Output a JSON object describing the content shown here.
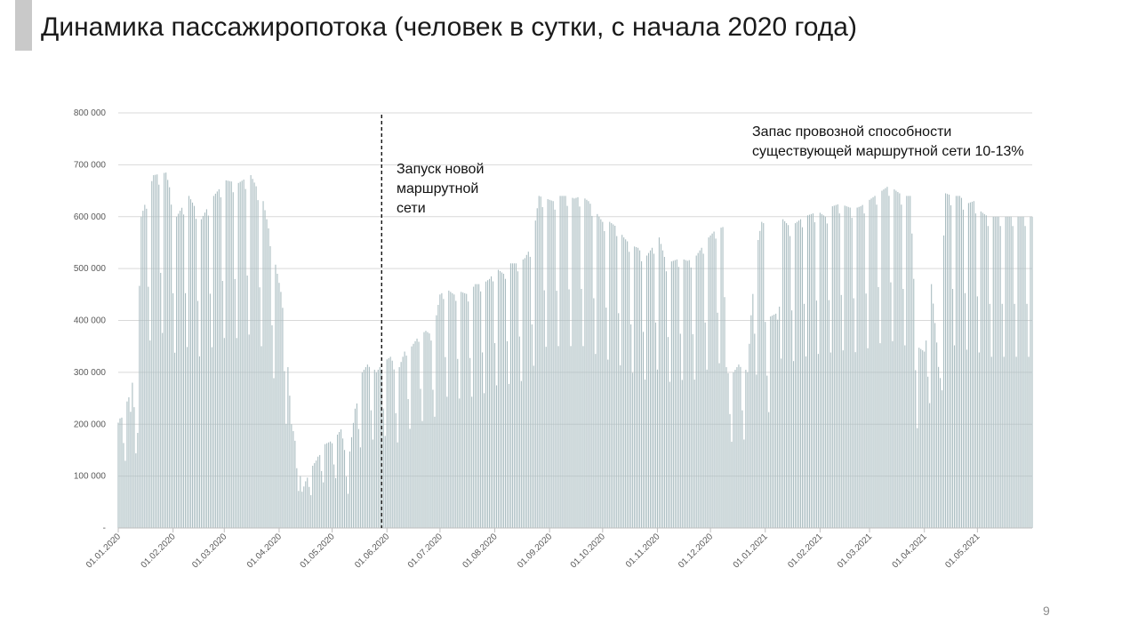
{
  "slide": {
    "title": "Динамика пассажиропотока (человек в сутки, с начала 2020 года)",
    "page_number": "9"
  },
  "chart_data": {
    "type": "bar",
    "title": "Динамика пассажиропотока (человек в сутки, с начала 2020 года)",
    "xlabel": "",
    "ylabel": "",
    "ylim": [
      0,
      800000
    ],
    "grid": true,
    "bar_color": "#a9bcc0",
    "yticks": [
      {
        "value": 0,
        "label": "-"
      },
      {
        "value": 100000,
        "label": "100 000"
      },
      {
        "value": 200000,
        "label": "200 000"
      },
      {
        "value": 300000,
        "label": "300 000"
      },
      {
        "value": 400000,
        "label": "400 000"
      },
      {
        "value": 500000,
        "label": "500 000"
      },
      {
        "value": 600000,
        "label": "600 000"
      },
      {
        "value": 700000,
        "label": "700 000"
      },
      {
        "value": 800000,
        "label": "800 000"
      }
    ],
    "xticks": [
      {
        "day": 0,
        "label": "01.01.2020"
      },
      {
        "day": 31,
        "label": "01.02.2020"
      },
      {
        "day": 60,
        "label": "01.03.2020"
      },
      {
        "day": 91,
        "label": "01.04.2020"
      },
      {
        "day": 121,
        "label": "01.05.2020"
      },
      {
        "day": 152,
        "label": "01.06.2020"
      },
      {
        "day": 182,
        "label": "01.07.2020"
      },
      {
        "day": 213,
        "label": "01.08.2020"
      },
      {
        "day": 244,
        "label": "01.09.2020"
      },
      {
        "day": 274,
        "label": "01.10.2020"
      },
      {
        "day": 305,
        "label": "01.11.2020"
      },
      {
        "day": 335,
        "label": "01.12.2020"
      },
      {
        "day": 366,
        "label": "01.01.2021"
      },
      {
        "day": 397,
        "label": "01.02.2021"
      },
      {
        "day": 425,
        "label": "01.03.2021"
      },
      {
        "day": 456,
        "label": "01.04.2021"
      },
      {
        "day": 486,
        "label": "01.05.2021"
      }
    ],
    "x_start_date": "01.01.2020",
    "num_days": 518,
    "weekly_profile": {
      "note": "daily values approximated from gridlines; weekdays peak, weekends lower",
      "weekday_peaks": [
        [
          0,
          290000
        ],
        [
          6,
          360000
        ],
        [
          10,
          200000
        ],
        [
          13,
          600000
        ],
        [
          20,
          680000
        ],
        [
          27,
          685000
        ],
        [
          33,
          600000
        ],
        [
          40,
          640000
        ],
        [
          47,
          595000
        ],
        [
          54,
          640000
        ],
        [
          61,
          670000
        ],
        [
          68,
          665000
        ],
        [
          75,
          680000
        ],
        [
          82,
          630000
        ],
        [
          86,
          560000
        ],
        [
          90,
          490000
        ],
        [
          94,
          420000
        ],
        [
          98,
          200000
        ],
        [
          101,
          160000
        ],
        [
          104,
          70000
        ],
        [
          108,
          110000
        ],
        [
          112,
          130000
        ],
        [
          116,
          160000
        ],
        [
          122,
          170000
        ],
        [
          126,
          190000
        ],
        [
          130,
          120000
        ],
        [
          134,
          230000
        ],
        [
          138,
          300000
        ],
        [
          142,
          320000
        ],
        [
          146,
          300000
        ],
        [
          150,
          320000
        ],
        [
          154,
          330000
        ],
        [
          158,
          300000
        ],
        [
          162,
          340000
        ],
        [
          166,
          350000
        ],
        [
          170,
          370000
        ],
        [
          174,
          380000
        ],
        [
          178,
          370000
        ],
        [
          182,
          450000
        ],
        [
          186,
          460000
        ],
        [
          190,
          450000
        ],
        [
          194,
          455000
        ],
        [
          198,
          450000
        ],
        [
          202,
          470000
        ],
        [
          206,
          470000
        ],
        [
          210,
          480000
        ],
        [
          214,
          500000
        ],
        [
          218,
          490000
        ],
        [
          222,
          510000
        ],
        [
          226,
          510000
        ],
        [
          230,
          520000
        ],
        [
          234,
          545000
        ],
        [
          238,
          640000
        ],
        [
          242,
          635000
        ],
        [
          246,
          630000
        ],
        [
          250,
          640000
        ],
        [
          254,
          640000
        ],
        [
          258,
          635000
        ],
        [
          262,
          640000
        ],
        [
          266,
          630000
        ],
        [
          270,
          610000
        ],
        [
          274,
          590000
        ],
        [
          278,
          590000
        ],
        [
          282,
          580000
        ],
        [
          286,
          560000
        ],
        [
          290,
          545000
        ],
        [
          294,
          540000
        ],
        [
          298,
          520000
        ],
        [
          302,
          540000
        ],
        [
          306,
          560000
        ],
        [
          310,
          510000
        ],
        [
          314,
          515000
        ],
        [
          318,
          520000
        ],
        [
          322,
          515000
        ],
        [
          326,
          520000
        ],
        [
          330,
          540000
        ],
        [
          334,
          560000
        ],
        [
          338,
          575000
        ],
        [
          342,
          580000
        ],
        [
          344,
          310000
        ],
        [
          348,
          300000
        ],
        [
          352,
          320000
        ],
        [
          356,
          300000
        ],
        [
          360,
          520000
        ],
        [
          364,
          590000
        ],
        [
          368,
          580000
        ],
        [
          372,
          590000
        ],
        [
          376,
          595000
        ],
        [
          380,
          580000
        ],
        [
          384,
          590000
        ],
        [
          388,
          600000
        ],
        [
          392,
          605000
        ],
        [
          396,
          610000
        ],
        [
          400,
          600000
        ],
        [
          404,
          620000
        ],
        [
          408,
          625000
        ],
        [
          412,
          620000
        ],
        [
          416,
          615000
        ],
        [
          420,
          620000
        ],
        [
          424,
          630000
        ],
        [
          428,
          640000
        ],
        [
          432,
          650000
        ],
        [
          436,
          660000
        ],
        [
          440,
          650000
        ],
        [
          444,
          640000
        ],
        [
          448,
          640000
        ],
        [
          452,
          350000
        ],
        [
          456,
          340000
        ],
        [
          460,
          470000
        ],
        [
          464,
          320000
        ],
        [
          468,
          645000
        ],
        [
          472,
          640000
        ],
        [
          476,
          640000
        ],
        [
          480,
          625000
        ],
        [
          484,
          630000
        ],
        [
          488,
          610000
        ],
        [
          492,
          600000
        ]
      ]
    },
    "annotations": [
      {
        "id": "launch",
        "text": "Запуск новой\nмаршрутной\nсети",
        "day": 149
      },
      {
        "id": "reserve",
        "text": "Запас провозной способности\nсуществующей маршрутной сети 10-13%"
      }
    ]
  }
}
